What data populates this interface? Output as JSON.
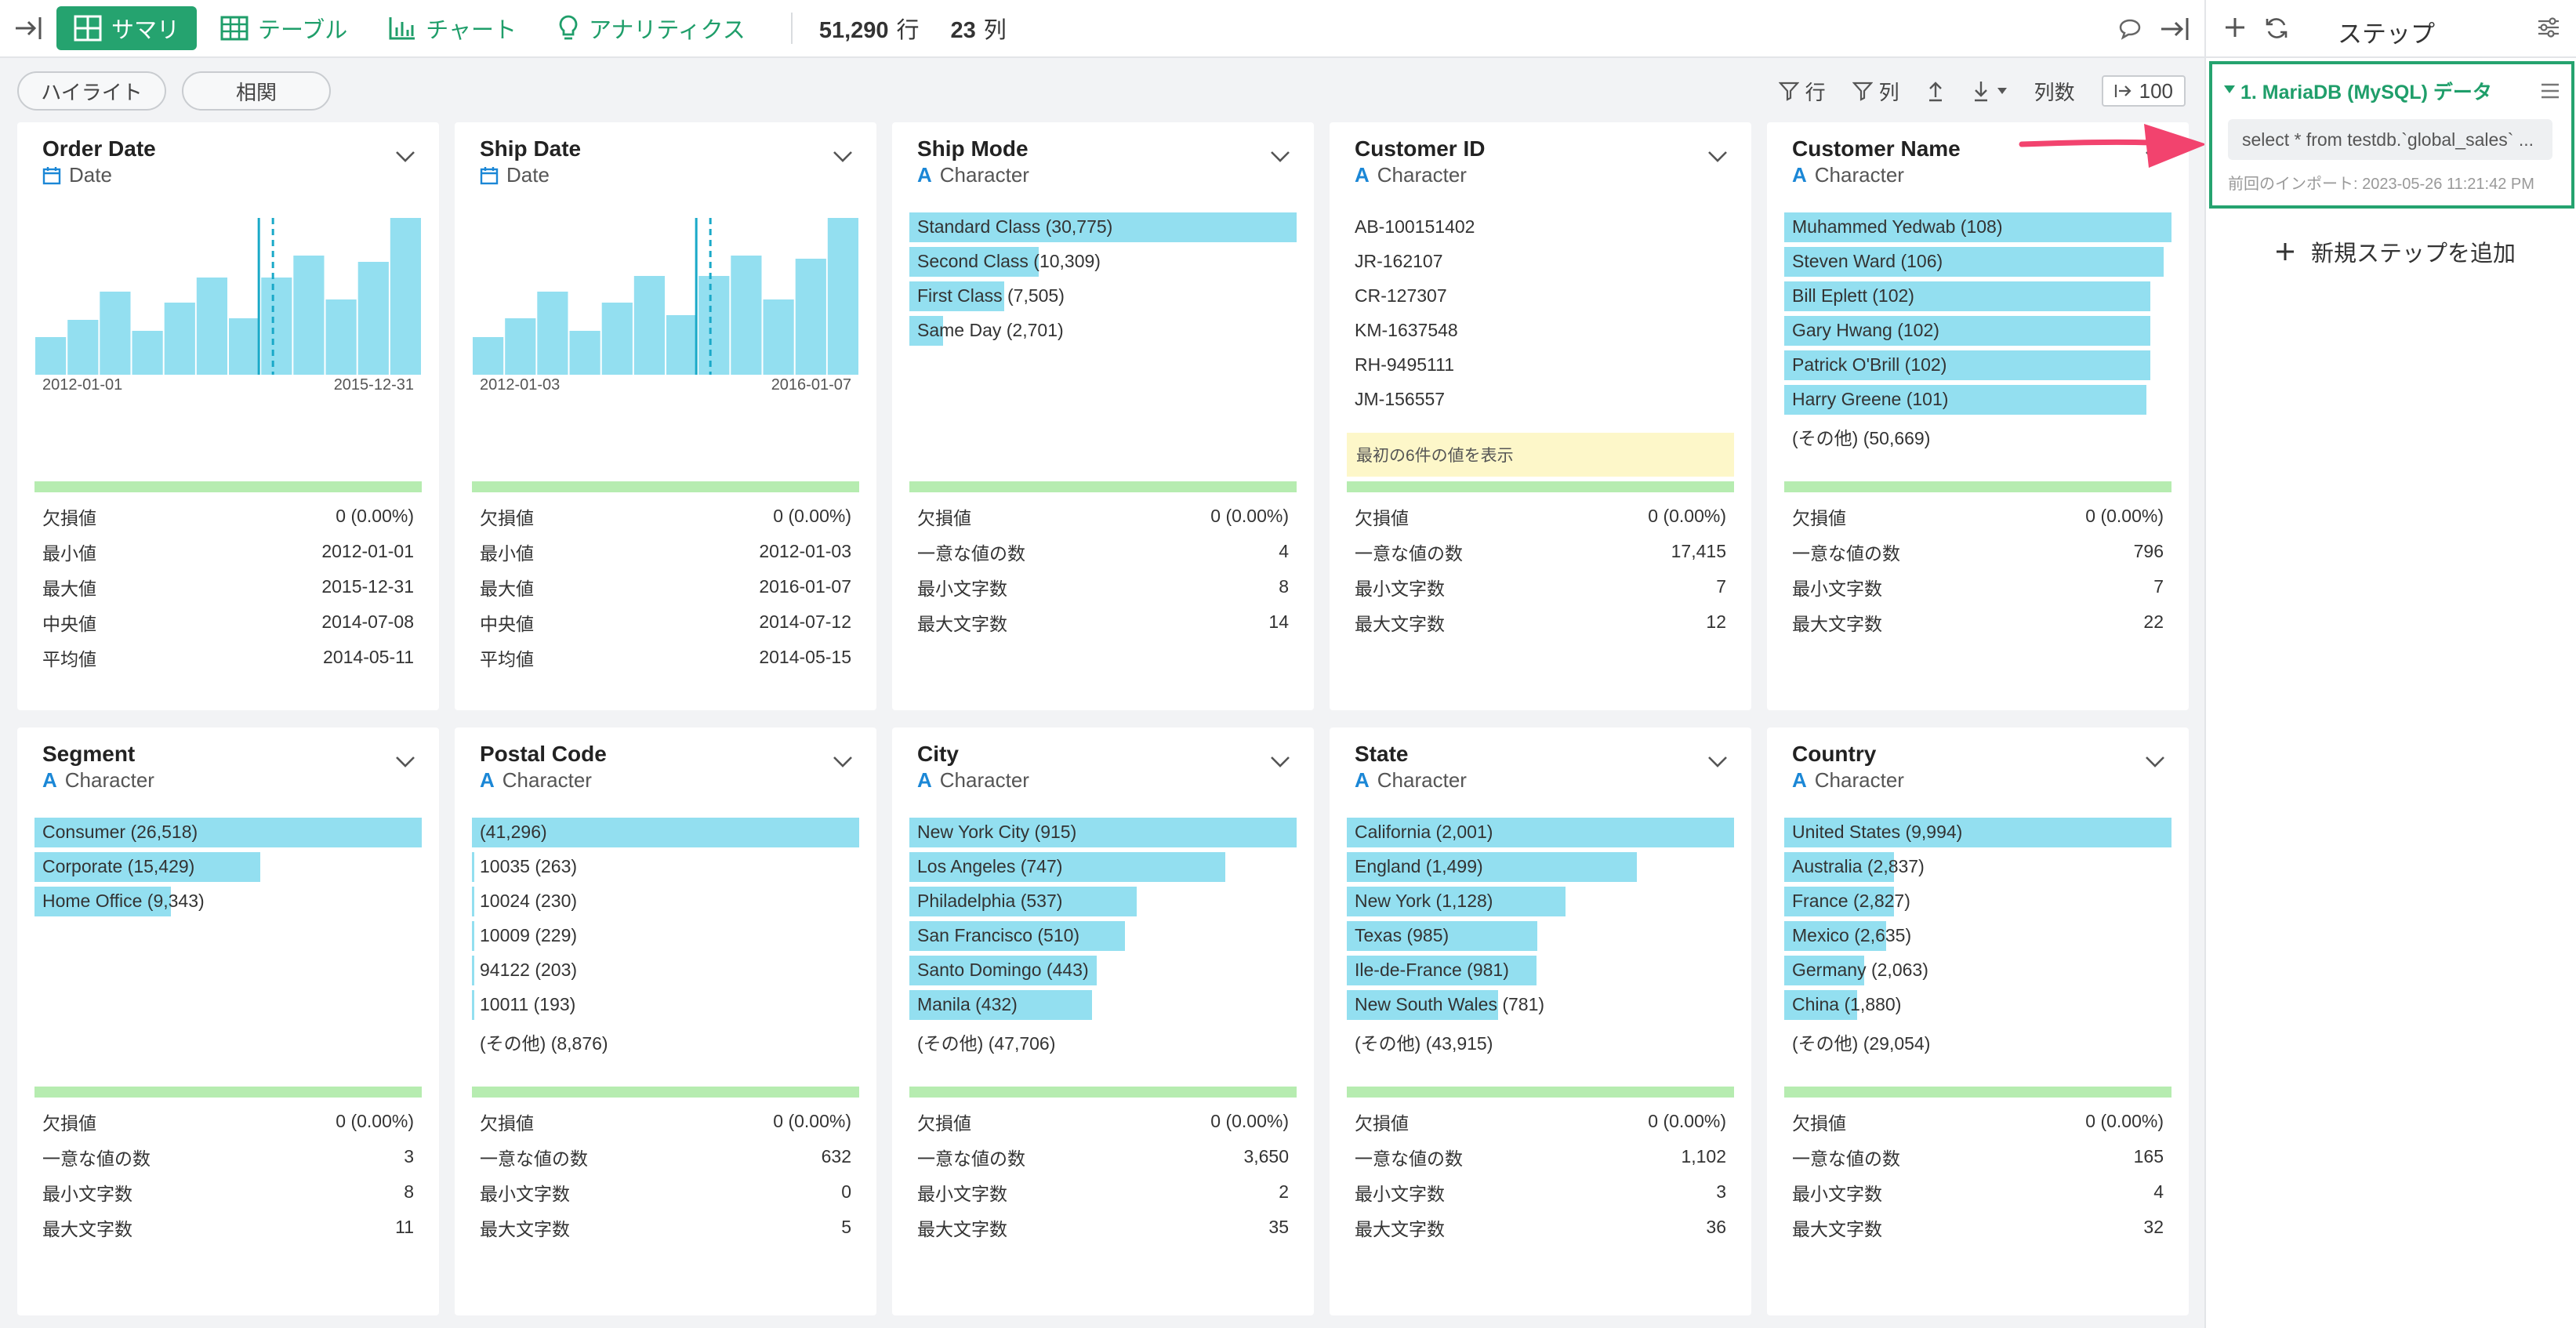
{
  "toolbar": {
    "views": [
      {
        "label": "サマリ",
        "icon": "grid-icon",
        "active": true
      },
      {
        "label": "テーブル",
        "icon": "table-icon",
        "active": false
      },
      {
        "label": "チャート",
        "icon": "bar-chart-icon",
        "active": false
      },
      {
        "label": "アナリティクス",
        "icon": "lightbulb-icon",
        "active": false
      }
    ],
    "row_count": "51,290",
    "row_unit": "行",
    "col_count": "23",
    "col_unit": "列"
  },
  "subtoolbar": {
    "highlight": "ハイライト",
    "correlation": "相関",
    "filter_row": "行",
    "filter_col": "列",
    "col_count_label": "列数",
    "col_count_value": "100"
  },
  "sidebar": {
    "title": "ステップ",
    "step_title": "1. MariaDB (MySQL) データ",
    "sql": "select * from testdb.`global_sales` ...",
    "imported": "前回のインポート: 2023-05-26 11:21:42 PM",
    "add_step": "新規ステップを追加"
  },
  "colors": {
    "accent": "#25a36f",
    "bar": "#93dff0",
    "quality": "#b6ecb0",
    "arrow": "#f2436e"
  },
  "cards": [
    {
      "title": "Order Date",
      "type": "Date",
      "kind": "date",
      "histogram": [
        0.24,
        0.35,
        0.53,
        0.28,
        0.46,
        0.62,
        0.36,
        0.62,
        0.76,
        0.48,
        0.72,
        1.0
      ],
      "axis_start": "2012-01-01",
      "axis_end": "2015-12-31",
      "stats": [
        [
          "欠損値",
          "0 (0.00%)"
        ],
        [
          "最小値",
          "2012-01-01"
        ],
        [
          "最大値",
          "2015-12-31"
        ],
        [
          "中央値",
          "2014-07-08"
        ],
        [
          "平均値",
          "2014-05-11"
        ]
      ]
    },
    {
      "title": "Ship Date",
      "type": "Date",
      "kind": "date",
      "histogram": [
        0.24,
        0.36,
        0.53,
        0.28,
        0.46,
        0.63,
        0.38,
        0.63,
        0.76,
        0.48,
        0.74,
        1.0
      ],
      "axis_start": "2012-01-03",
      "axis_end": "2016-01-07",
      "stats": [
        [
          "欠損値",
          "0 (0.00%)"
        ],
        [
          "最小値",
          "2012-01-03"
        ],
        [
          "最大値",
          "2016-01-07"
        ],
        [
          "中央値",
          "2014-07-12"
        ],
        [
          "平均値",
          "2014-05-15"
        ]
      ]
    },
    {
      "title": "Ship Mode",
      "type": "Character",
      "kind": "freq",
      "items": [
        [
          "Standard Class (30,775)",
          1.0
        ],
        [
          "Second Class (10,309)",
          0.335
        ],
        [
          "First Class (7,505)",
          0.244
        ],
        [
          "Same Day (2,701)",
          0.088
        ]
      ],
      "stats": [
        [
          "欠損値",
          "0 (0.00%)"
        ],
        [
          "一意な値の数",
          "4"
        ],
        [
          "最小文字数",
          "8"
        ],
        [
          "最大文字数",
          "14"
        ]
      ]
    },
    {
      "title": "Customer ID",
      "type": "Character",
      "kind": "plain",
      "items": [
        "AB-100151402",
        "JR-162107",
        "CR-127307",
        "KM-1637548",
        "RH-9495111",
        "JM-156557"
      ],
      "note": "最初の6件の値を表示",
      "stats": [
        [
          "欠損値",
          "0 (0.00%)"
        ],
        [
          "一意な値の数",
          "17,415"
        ],
        [
          "最小文字数",
          "7"
        ],
        [
          "最大文字数",
          "12"
        ]
      ]
    },
    {
      "title": "Customer Name",
      "type": "Character",
      "kind": "freq",
      "items": [
        [
          "Muhammed Yedwab (108)",
          1.0
        ],
        [
          "Steven Ward (106)",
          0.98
        ],
        [
          "Bill Eplett (102)",
          0.945
        ],
        [
          "Gary Hwang (102)",
          0.945
        ],
        [
          "Patrick O'Brill (102)",
          0.945
        ],
        [
          "Harry Greene (101)",
          0.935
        ],
        [
          "(その他) (50,669)",
          0
        ]
      ],
      "stats": [
        [
          "欠損値",
          "0 (0.00%)"
        ],
        [
          "一意な値の数",
          "796"
        ],
        [
          "最小文字数",
          "7"
        ],
        [
          "最大文字数",
          "22"
        ]
      ]
    },
    {
      "title": "Segment",
      "type": "Character",
      "kind": "freq",
      "items": [
        [
          "Consumer (26,518)",
          1.0
        ],
        [
          "Corporate (15,429)",
          0.582
        ],
        [
          "Home Office (9,343)",
          0.352
        ]
      ],
      "stats": [
        [
          "欠損値",
          "0 (0.00%)"
        ],
        [
          "一意な値の数",
          "3"
        ],
        [
          "最小文字数",
          "8"
        ],
        [
          "最大文字数",
          "11"
        ]
      ]
    },
    {
      "title": "Postal Code",
      "type": "Character",
      "kind": "freq",
      "items": [
        [
          "(41,296)",
          1.0
        ],
        [
          "10035 (263)",
          0.006
        ],
        [
          "10024 (230)",
          0.006
        ],
        [
          "10009 (229)",
          0.006
        ],
        [
          "94122 (203)",
          0.005
        ],
        [
          "10011 (193)",
          0.005
        ],
        [
          "(その他) (8,876)",
          0
        ]
      ],
      "stats": [
        [
          "欠損値",
          "0 (0.00%)"
        ],
        [
          "一意な値の数",
          "632"
        ],
        [
          "最小文字数",
          "0"
        ],
        [
          "最大文字数",
          "5"
        ]
      ]
    },
    {
      "title": "City",
      "type": "Character",
      "kind": "freq",
      "items": [
        [
          "New York City (915)",
          1.0
        ],
        [
          "Los Angeles (747)",
          0.816
        ],
        [
          "Philadelphia (537)",
          0.587
        ],
        [
          "San Francisco (510)",
          0.557
        ],
        [
          "Santo Domingo (443)",
          0.484
        ],
        [
          "Manila (432)",
          0.472
        ],
        [
          "(その他) (47,706)",
          0
        ]
      ],
      "stats": [
        [
          "欠損値",
          "0 (0.00%)"
        ],
        [
          "一意な値の数",
          "3,650"
        ],
        [
          "最小文字数",
          "2"
        ],
        [
          "最大文字数",
          "35"
        ]
      ]
    },
    {
      "title": "State",
      "type": "Character",
      "kind": "freq",
      "items": [
        [
          "California (2,001)",
          1.0
        ],
        [
          "England (1,499)",
          0.749
        ],
        [
          "New York (1,128)",
          0.564
        ],
        [
          "Texas (985)",
          0.492
        ],
        [
          "Ile-de-France (981)",
          0.49
        ],
        [
          "New South Wales (781)",
          0.39
        ],
        [
          "(その他) (43,915)",
          0
        ]
      ],
      "stats": [
        [
          "欠損値",
          "0 (0.00%)"
        ],
        [
          "一意な値の数",
          "1,102"
        ],
        [
          "最小文字数",
          "3"
        ],
        [
          "最大文字数",
          "36"
        ]
      ]
    },
    {
      "title": "Country",
      "type": "Character",
      "kind": "freq",
      "items": [
        [
          "United States (9,994)",
          1.0
        ],
        [
          "Australia (2,837)",
          0.284
        ],
        [
          "France (2,827)",
          0.283
        ],
        [
          "Mexico (2,635)",
          0.264
        ],
        [
          "Germany (2,063)",
          0.206
        ],
        [
          "China (1,880)",
          0.188
        ],
        [
          "(その他) (29,054)",
          0
        ]
      ],
      "stats": [
        [
          "欠損値",
          "0 (0.00%)"
        ],
        [
          "一意な値の数",
          "165"
        ],
        [
          "最小文字数",
          "4"
        ],
        [
          "最大文字数",
          "32"
        ]
      ]
    }
  ]
}
